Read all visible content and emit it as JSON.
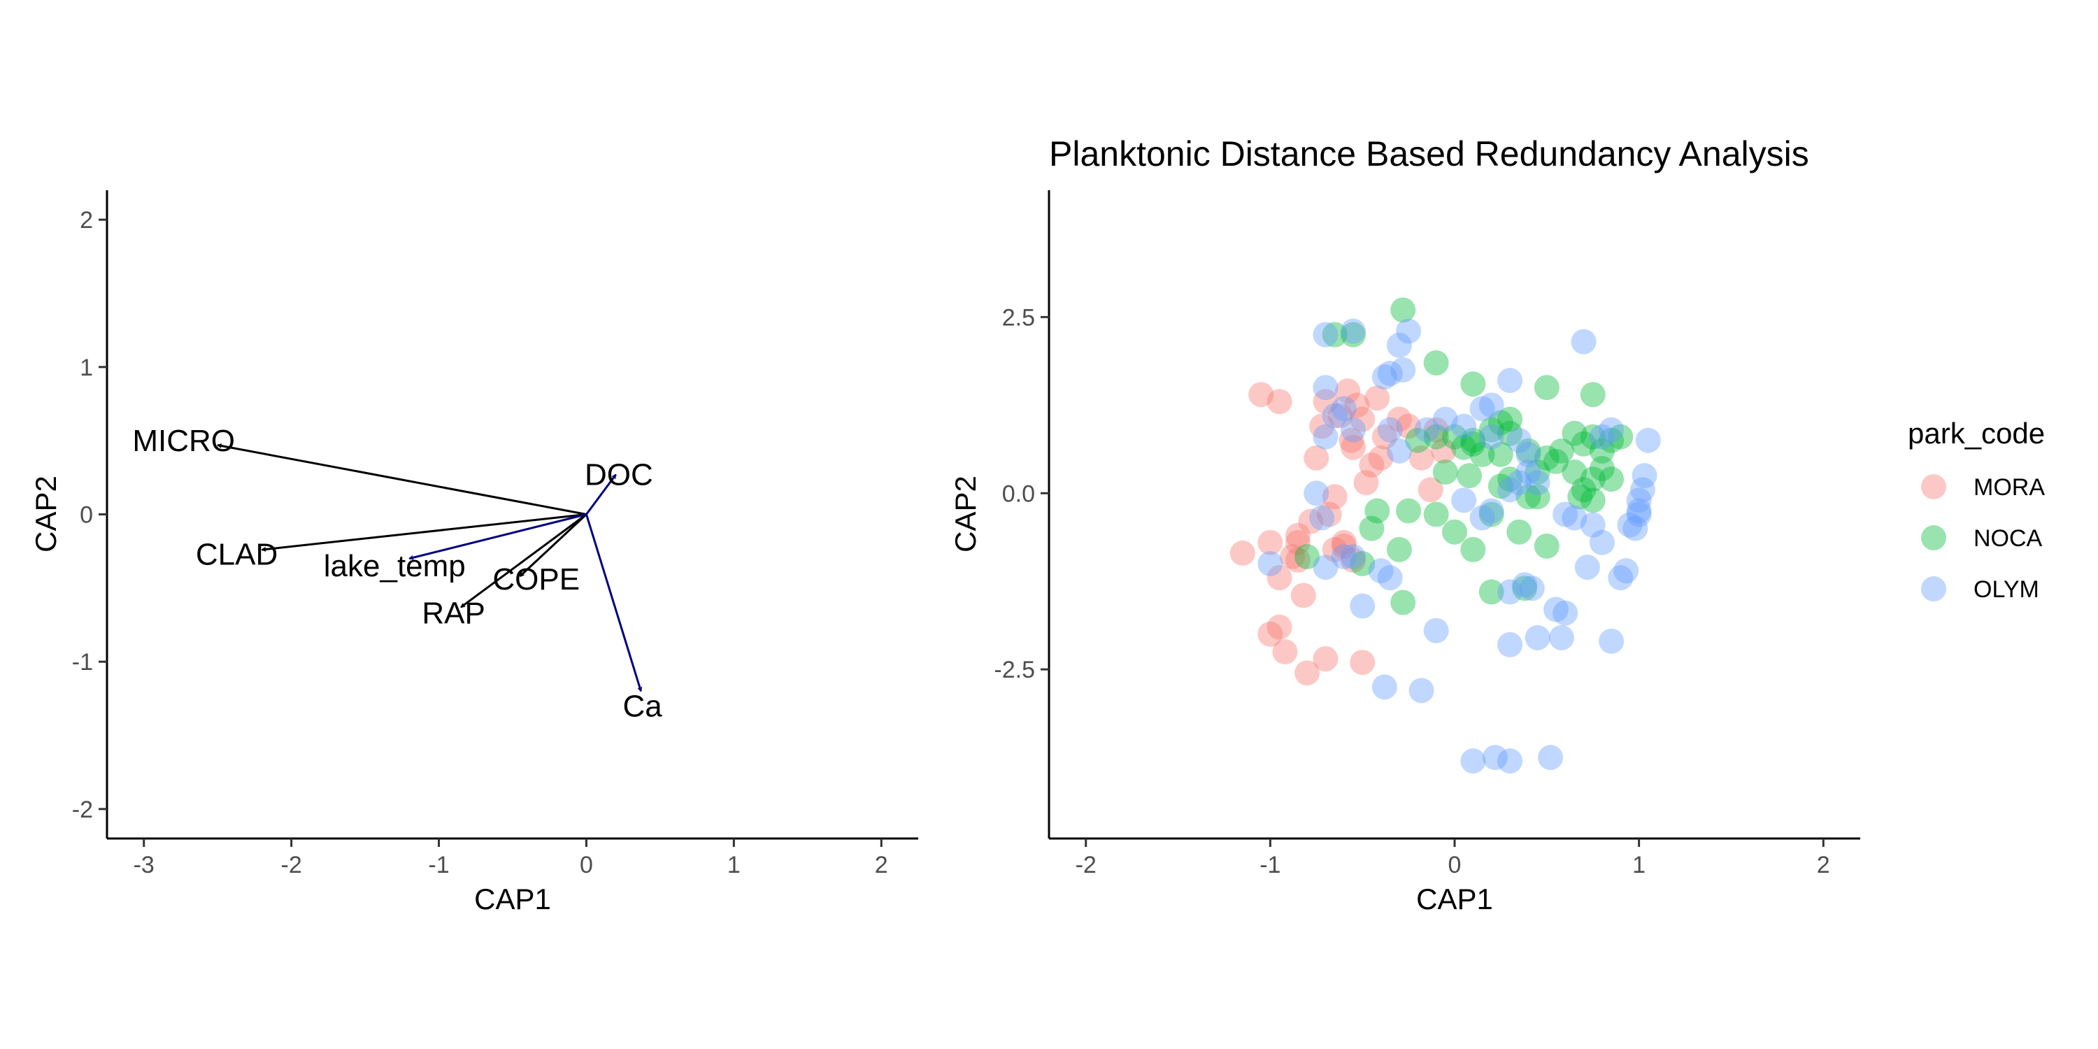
{
  "chart_data": [
    {
      "type": "scatter",
      "subtype": "biplot-vectors",
      "title": "",
      "xlabel": "CAP1",
      "ylabel": "CAP2",
      "xlim": [
        -3.25,
        2.25
      ],
      "ylim": [
        -2.2,
        2.2
      ],
      "xticks": [
        -3,
        -2,
        -1,
        0,
        1,
        2
      ],
      "yticks": [
        -2,
        -1,
        0,
        1,
        2
      ],
      "grid": false,
      "colors": {
        "species": "#000000",
        "environment": "#000080"
      },
      "vectors": [
        {
          "name": "MICRO",
          "x": -2.5,
          "y": 0.47,
          "group": "species",
          "label_x": -2.73,
          "label_y": 0.5
        },
        {
          "name": "CLAD",
          "x": -2.2,
          "y": -0.24,
          "group": "species",
          "label_x": -2.37,
          "label_y": -0.27
        },
        {
          "name": "COPE",
          "x": -0.45,
          "y": -0.42,
          "group": "species",
          "label_x": -0.34,
          "label_y": -0.44
        },
        {
          "name": "RAP",
          "x": -0.85,
          "y": -0.63,
          "group": "species",
          "label_x": -0.9,
          "label_y": -0.67
        },
        {
          "name": "lake_temp",
          "x": -1.2,
          "y": -0.3,
          "group": "environment",
          "label_x": -1.3,
          "label_y": -0.35
        },
        {
          "name": "DOC",
          "x": 0.2,
          "y": 0.27,
          "group": "environment",
          "label_x": 0.22,
          "label_y": 0.27
        },
        {
          "name": "Ca",
          "x": 0.37,
          "y": -1.2,
          "group": "environment",
          "label_x": 0.38,
          "label_y": -1.3
        }
      ]
    },
    {
      "type": "scatter",
      "title": "Planktonic Distance Based Redundancy Analysis",
      "xlabel": "CAP1",
      "ylabel": "CAP2",
      "xlim": [
        -2.2,
        2.2
      ],
      "ylim": [
        -4.9,
        4.3
      ],
      "xticks": [
        -2,
        -1,
        0,
        1,
        2
      ],
      "yticks": [
        -2.5,
        0.0,
        2.5
      ],
      "ytick_labels": [
        "-2.5",
        "0.0",
        "2.5"
      ],
      "grid": false,
      "legend": {
        "title": "park_code",
        "position": "right"
      },
      "point_alpha": 0.4,
      "series": [
        {
          "name": "MORA",
          "color": "#F8766D",
          "points": [
            [
              -1.15,
              -0.85
            ],
            [
              -1.05,
              1.4
            ],
            [
              -0.95,
              1.3
            ],
            [
              -1.0,
              -0.7
            ],
            [
              -0.95,
              -1.2
            ],
            [
              -0.88,
              -0.9
            ],
            [
              -0.85,
              -0.6
            ],
            [
              -0.85,
              -0.7
            ],
            [
              -0.82,
              -1.45
            ],
            [
              -0.78,
              -0.4
            ],
            [
              -0.75,
              0.5
            ],
            [
              -0.72,
              0.95
            ],
            [
              -0.7,
              1.3
            ],
            [
              -0.68,
              -0.3
            ],
            [
              -0.65,
              -0.05
            ],
            [
              -0.62,
              1.1
            ],
            [
              -0.6,
              -0.75
            ],
            [
              -0.58,
              1.45
            ],
            [
              -0.56,
              0.75
            ],
            [
              -0.55,
              0.65
            ],
            [
              -0.53,
              1.25
            ],
            [
              -0.5,
              1.05
            ],
            [
              -0.48,
              0.15
            ],
            [
              -0.45,
              0.4
            ],
            [
              -0.42,
              1.35
            ],
            [
              -0.4,
              0.5
            ],
            [
              -0.38,
              0.8
            ],
            [
              -0.3,
              1.05
            ],
            [
              -0.25,
              0.95
            ],
            [
              -0.18,
              0.5
            ],
            [
              -0.13,
              0.05
            ],
            [
              -0.1,
              0.9
            ],
            [
              -1.0,
              -2.0
            ],
            [
              -0.95,
              -1.9
            ],
            [
              -0.92,
              -2.25
            ],
            [
              -0.85,
              -0.95
            ],
            [
              -0.8,
              -2.55
            ],
            [
              -0.7,
              -2.35
            ],
            [
              -0.5,
              -2.4
            ],
            [
              -0.55,
              -0.95
            ],
            [
              -0.6,
              -0.7
            ],
            [
              -0.65,
              -0.8
            ],
            [
              -0.06,
              0.6
            ]
          ]
        },
        {
          "name": "NOCA",
          "color": "#00BA38",
          "points": [
            [
              -0.65,
              2.25
            ],
            [
              -0.55,
              2.25
            ],
            [
              -0.28,
              2.6
            ],
            [
              -0.1,
              1.85
            ],
            [
              0.1,
              1.55
            ],
            [
              0.3,
              1.05
            ],
            [
              0.5,
              1.5
            ],
            [
              0.75,
              1.4
            ],
            [
              -0.2,
              0.75
            ],
            [
              -0.1,
              0.8
            ],
            [
              0.0,
              0.8
            ],
            [
              0.05,
              0.65
            ],
            [
              0.1,
              0.75
            ],
            [
              0.15,
              0.55
            ],
            [
              0.2,
              0.9
            ],
            [
              0.25,
              1.0
            ],
            [
              0.3,
              0.85
            ],
            [
              0.4,
              0.6
            ],
            [
              0.45,
              0.3
            ],
            [
              0.5,
              0.5
            ],
            [
              0.55,
              0.45
            ],
            [
              0.58,
              0.6
            ],
            [
              0.65,
              0.85
            ],
            [
              0.7,
              0.7
            ],
            [
              0.75,
              0.8
            ],
            [
              0.8,
              0.6
            ],
            [
              0.85,
              0.75
            ],
            [
              0.9,
              0.8
            ],
            [
              0.65,
              0.3
            ],
            [
              0.7,
              0.05
            ],
            [
              0.75,
              -0.1
            ],
            [
              0.8,
              0.35
            ],
            [
              0.85,
              0.2
            ],
            [
              0.75,
              0.2
            ],
            [
              0.68,
              -0.05
            ],
            [
              -0.45,
              -0.5
            ],
            [
              -0.42,
              -0.25
            ],
            [
              -0.3,
              -0.8
            ],
            [
              -0.25,
              -0.25
            ],
            [
              -0.1,
              -0.3
            ],
            [
              -0.05,
              0.3
            ],
            [
              0.0,
              -0.55
            ],
            [
              0.08,
              0.25
            ],
            [
              0.1,
              -0.8
            ],
            [
              0.2,
              -0.3
            ],
            [
              0.25,
              0.1
            ],
            [
              0.3,
              0.2
            ],
            [
              0.35,
              -0.55
            ],
            [
              0.4,
              -0.05
            ],
            [
              0.45,
              -0.05
            ],
            [
              0.5,
              -0.75
            ],
            [
              -0.5,
              -1.0
            ],
            [
              -0.28,
              -1.55
            ],
            [
              0.2,
              -1.4
            ],
            [
              0.38,
              -1.35
            ],
            [
              -0.8,
              -0.9
            ],
            [
              0.1,
              0.7
            ],
            [
              0.25,
              0.55
            ]
          ]
        },
        {
          "name": "OLYM",
          "color": "#619CFF",
          "points": [
            [
              -0.7,
              2.25
            ],
            [
              -0.55,
              2.3
            ],
            [
              -0.25,
              2.3
            ],
            [
              -0.3,
              2.1
            ],
            [
              -0.28,
              1.75
            ],
            [
              -0.35,
              1.7
            ],
            [
              -0.38,
              1.65
            ],
            [
              -0.7,
              1.5
            ],
            [
              -0.6,
              1.2
            ],
            [
              -0.65,
              1.1
            ],
            [
              -0.7,
              0.8
            ],
            [
              -0.55,
              0.9
            ],
            [
              -0.35,
              0.9
            ],
            [
              -0.3,
              0.6
            ],
            [
              -0.15,
              0.9
            ],
            [
              -0.05,
              1.05
            ],
            [
              0.05,
              0.95
            ],
            [
              0.15,
              1.2
            ],
            [
              0.2,
              1.25
            ],
            [
              0.3,
              1.6
            ],
            [
              0.35,
              0.75
            ],
            [
              0.4,
              0.55
            ],
            [
              0.7,
              2.15
            ],
            [
              0.85,
              0.9
            ],
            [
              0.8,
              0.8
            ],
            [
              1.05,
              0.75
            ],
            [
              -0.75,
              0.0
            ],
            [
              -0.72,
              -0.35
            ],
            [
              -0.7,
              -1.05
            ],
            [
              -0.6,
              -0.9
            ],
            [
              -0.5,
              -1.6
            ],
            [
              -0.4,
              -1.1
            ],
            [
              -0.35,
              -1.2
            ],
            [
              -0.1,
              -1.95
            ],
            [
              0.05,
              -0.1
            ],
            [
              0.15,
              -0.35
            ],
            [
              0.2,
              -0.25
            ],
            [
              0.3,
              0.05
            ],
            [
              0.35,
              0.15
            ],
            [
              0.4,
              0.3
            ],
            [
              0.3,
              -1.4
            ],
            [
              0.38,
              -1.3
            ],
            [
              0.42,
              -1.35
            ],
            [
              0.45,
              -2.05
            ],
            [
              0.55,
              -1.65
            ],
            [
              0.6,
              -1.7
            ],
            [
              0.58,
              -2.05
            ],
            [
              0.6,
              -0.3
            ],
            [
              0.65,
              -0.35
            ],
            [
              0.75,
              -0.45
            ],
            [
              0.72,
              -1.05
            ],
            [
              0.85,
              -2.1
            ],
            [
              0.9,
              -1.2
            ],
            [
              0.93,
              -1.1
            ],
            [
              0.98,
              -0.5
            ],
            [
              1.0,
              -0.3
            ],
            [
              1.0,
              -0.1
            ],
            [
              1.02,
              0.05
            ],
            [
              1.03,
              0.25
            ],
            [
              1.0,
              -0.25
            ],
            [
              0.8,
              -0.7
            ],
            [
              0.95,
              -0.45
            ],
            [
              -0.38,
              -2.75
            ],
            [
              -0.18,
              -2.8
            ],
            [
              0.1,
              -3.8
            ],
            [
              0.22,
              -3.75
            ],
            [
              0.3,
              -3.8
            ],
            [
              0.52,
              -3.75
            ],
            [
              0.3,
              -2.15
            ],
            [
              -1.0,
              -1.0
            ],
            [
              -0.55,
              -0.9
            ],
            [
              0.2,
              0.8
            ],
            [
              0.45,
              0.15
            ]
          ]
        }
      ]
    }
  ]
}
